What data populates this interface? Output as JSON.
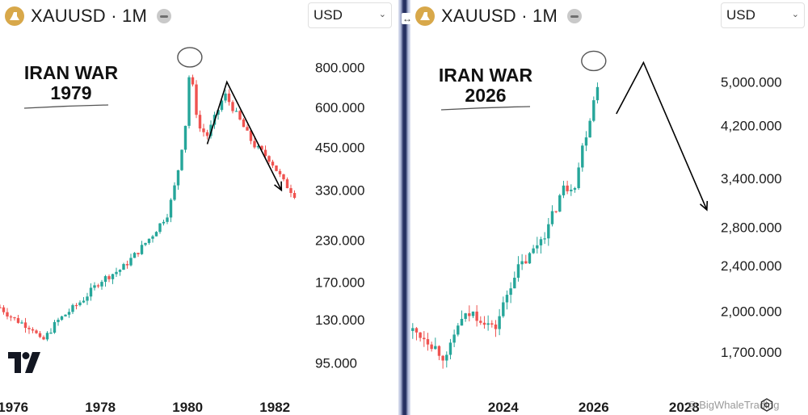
{
  "window": {
    "left_panel": {
      "symbol": "XAUUSD · 1M",
      "currency": "USD",
      "annotation": [
        "IRAN WAR",
        "1979"
      ]
    },
    "right_panel": {
      "symbol": "XAUUSD · 1M",
      "currency": "USD",
      "annotation": [
        "IRAN WAR",
        "2026"
      ]
    },
    "watermark": "© BigWhaleTrading"
  },
  "colors": {
    "up": "#26a69a",
    "down": "#ef5350",
    "gold": "#d8a84a",
    "text": "#1c1c1c"
  },
  "chart_data": [
    {
      "type": "candlestick",
      "symbol": "XAUUSD",
      "interval": "1M",
      "y_scale": "log",
      "ylim": [
        82,
        1000
      ],
      "xlim": [
        1975.7,
        1982.7
      ],
      "x_ticks": [
        1976,
        1978,
        1980,
        1982
      ],
      "y_ticks": [
        95,
        130,
        170,
        230,
        330,
        450,
        600,
        800
      ],
      "y_tick_labels": [
        "95.000",
        "130.000",
        "170.000",
        "230.000",
        "330.000",
        "450.000",
        "600.000",
        "800.000"
      ],
      "annotation_path": [
        [
          1980.45,
          460
        ],
        [
          1980.9,
          720
        ],
        [
          1982.15,
          330
        ]
      ],
      "path_type": "projection-zigzag",
      "circled_peak": [
        1980.05,
        850
      ],
      "key_points": [
        {
          "x": 1975.7,
          "close": 142
        },
        {
          "x": 1976.0,
          "close": 131
        },
        {
          "x": 1976.45,
          "close": 122
        },
        {
          "x": 1976.65,
          "close": 110
        },
        {
          "x": 1977.0,
          "close": 128
        },
        {
          "x": 1977.6,
          "close": 150
        },
        {
          "x": 1978.0,
          "close": 172
        },
        {
          "x": 1978.5,
          "close": 188
        },
        {
          "x": 1978.9,
          "close": 215
        },
        {
          "x": 1979.2,
          "close": 240
        },
        {
          "x": 1979.55,
          "close": 280
        },
        {
          "x": 1979.75,
          "close": 360
        },
        {
          "x": 1979.95,
          "close": 530
        },
        {
          "x": 1980.05,
          "close": 800
        },
        {
          "x": 1980.25,
          "close": 520
        },
        {
          "x": 1980.45,
          "close": 490
        },
        {
          "x": 1980.85,
          "close": 660
        },
        {
          "x": 1981.15,
          "close": 560
        },
        {
          "x": 1981.5,
          "close": 460
        },
        {
          "x": 1981.9,
          "close": 410
        },
        {
          "x": 1982.2,
          "close": 350
        },
        {
          "x": 1982.45,
          "close": 320
        }
      ]
    },
    {
      "type": "candlestick",
      "symbol": "XAUUSD",
      "interval": "1M",
      "y_scale": "log",
      "ylim": [
        1500,
        5900
      ],
      "xlim": [
        2021.95,
        2028.7
      ],
      "x_ticks": [
        2024,
        2026,
        2028
      ],
      "x_tick_labels": [
        "2024",
        "2026",
        "2028"
      ],
      "y_ticks": [
        1700,
        2000,
        2400,
        2800,
        3400,
        4200,
        5000
      ],
      "y_tick_labels": [
        "1,700.000",
        "2,000.000",
        "2,400.000",
        "2,800.000",
        "3,400.000",
        "4,200.000",
        "5,000.000"
      ],
      "annotation_path": [
        [
          2026.5,
          4400
        ],
        [
          2027.1,
          5400
        ],
        [
          2028.5,
          3000
        ]
      ],
      "path_type": "projection-zigzag",
      "circled_peak": [
        2026.0,
        5400
      ],
      "key_points": [
        {
          "x": 2022.0,
          "close": 1850
        },
        {
          "x": 2022.3,
          "close": 1800
        },
        {
          "x": 2022.6,
          "close": 1700
        },
        {
          "x": 2022.75,
          "close": 1650
        },
        {
          "x": 2023.0,
          "close": 1900
        },
        {
          "x": 2023.3,
          "close": 1990
        },
        {
          "x": 2023.6,
          "close": 1930
        },
        {
          "x": 2023.8,
          "close": 1850
        },
        {
          "x": 2024.0,
          "close": 2050
        },
        {
          "x": 2024.25,
          "close": 2330
        },
        {
          "x": 2024.6,
          "close": 2500
        },
        {
          "x": 2024.85,
          "close": 2700
        },
        {
          "x": 2025.0,
          "close": 2800
        },
        {
          "x": 2025.3,
          "close": 3250
        },
        {
          "x": 2025.6,
          "close": 3350
        },
        {
          "x": 2025.75,
          "close": 3850
        },
        {
          "x": 2025.95,
          "close": 4450
        },
        {
          "x": 2026.05,
          "close": 4900
        },
        {
          "x": 2026.15,
          "close": 5200
        }
      ]
    }
  ]
}
